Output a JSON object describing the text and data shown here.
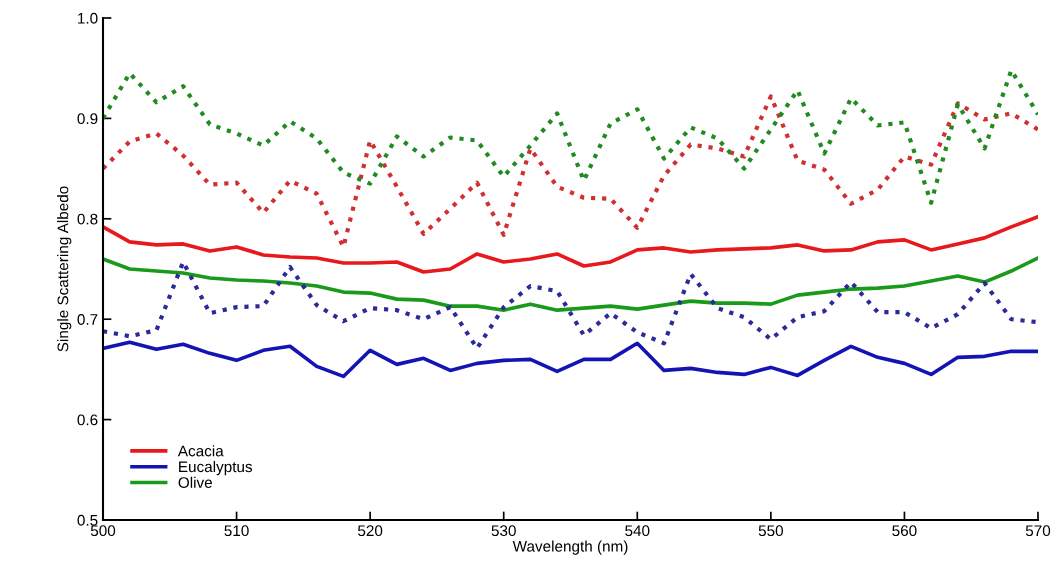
{
  "chart_data": {
    "type": "line",
    "xlabel": "Wavelength (nm)",
    "ylabel": "Single Scattering Albedo",
    "x": [
      500,
      502,
      504,
      506,
      508,
      510,
      512,
      514,
      516,
      518,
      520,
      522,
      524,
      526,
      528,
      530,
      532,
      534,
      536,
      538,
      540,
      542,
      544,
      546,
      548,
      550,
      552,
      554,
      556,
      558,
      560,
      562,
      564,
      566,
      568,
      570
    ],
    "xlim": [
      500,
      570
    ],
    "xticks": [
      500,
      510,
      520,
      530,
      540,
      550,
      560,
      570
    ],
    "ylim": [
      0.5,
      1.0
    ],
    "yticks": [
      0.5,
      0.6,
      0.7,
      0.8,
      0.9,
      {
        "value": 1.0,
        "label": "1.0"
      }
    ],
    "grid": false,
    "legend": "bottom left",
    "marker": "none",
    "series": [
      {
        "name": "Acacia",
        "color": "#e8191c",
        "line_style": "solid",
        "values": [
          0.792,
          0.777,
          0.774,
          0.775,
          0.768,
          0.772,
          0.764,
          0.762,
          0.761,
          0.756,
          0.756,
          0.757,
          0.747,
          0.75,
          0.765,
          0.757,
          0.76,
          0.765,
          0.753,
          0.757,
          0.769,
          0.771,
          0.767,
          0.769,
          0.77,
          0.771,
          0.774,
          0.768,
          0.769,
          0.777,
          0.779,
          0.769,
          0.775,
          0.781,
          0.792,
          0.802
        ]
      },
      {
        "name": "Eucalyptus",
        "color": "#1414b4",
        "line_style": "solid",
        "values": [
          0.671,
          0.677,
          0.67,
          0.675,
          0.666,
          0.659,
          0.669,
          0.673,
          0.653,
          0.643,
          0.669,
          0.655,
          0.661,
          0.649,
          0.656,
          0.659,
          0.66,
          0.648,
          0.66,
          0.66,
          0.676,
          0.649,
          0.651,
          0.647,
          0.645,
          0.652,
          0.644,
          0.659,
          0.673,
          0.662,
          0.656,
          0.645,
          0.662,
          0.663,
          0.668,
          0.668
        ]
      },
      {
        "name": "Olive",
        "color": "#1a9a1a",
        "line_style": "solid",
        "values": [
          0.76,
          0.75,
          0.748,
          0.746,
          0.741,
          0.739,
          0.738,
          0.736,
          0.733,
          0.727,
          0.726,
          0.72,
          0.719,
          0.713,
          0.713,
          0.709,
          0.715,
          0.709,
          0.711,
          0.713,
          0.71,
          0.714,
          0.718,
          0.716,
          0.716,
          0.715,
          0.724,
          0.727,
          0.73,
          0.731,
          0.733,
          0.738,
          0.743,
          0.737,
          0.748,
          0.761
        ]
      },
      {
        "color": "#d03030",
        "line_style": "dotted",
        "values": [
          0.85,
          0.877,
          0.885,
          0.863,
          0.834,
          0.836,
          0.806,
          0.838,
          0.825,
          0.772,
          0.878,
          0.832,
          0.785,
          0.81,
          0.836,
          0.784,
          0.87,
          0.832,
          0.821,
          0.82,
          0.791,
          0.843,
          0.874,
          0.87,
          0.862,
          0.922,
          0.858,
          0.849,
          0.815,
          0.829,
          0.862,
          0.854,
          0.915,
          0.899,
          0.905,
          0.889
        ]
      },
      {
        "color": "#2a2a98",
        "line_style": "dotted",
        "values": [
          0.688,
          0.683,
          0.689,
          0.757,
          0.706,
          0.712,
          0.713,
          0.752,
          0.714,
          0.698,
          0.711,
          0.709,
          0.7,
          0.712,
          0.671,
          0.712,
          0.733,
          0.728,
          0.684,
          0.706,
          0.687,
          0.676,
          0.745,
          0.711,
          0.702,
          0.68,
          0.702,
          0.708,
          0.737,
          0.707,
          0.707,
          0.691,
          0.705,
          0.736,
          0.7,
          0.697
        ]
      },
      {
        "color": "#228a22",
        "line_style": "dotted",
        "values": [
          0.9,
          0.945,
          0.916,
          0.932,
          0.894,
          0.885,
          0.873,
          0.897,
          0.88,
          0.846,
          0.835,
          0.882,
          0.862,
          0.881,
          0.878,
          0.842,
          0.873,
          0.905,
          0.838,
          0.895,
          0.909,
          0.86,
          0.891,
          0.88,
          0.85,
          0.889,
          0.928,
          0.865,
          0.92,
          0.893,
          0.896,
          0.816,
          0.914,
          0.87,
          0.948,
          0.904
        ]
      }
    ]
  }
}
